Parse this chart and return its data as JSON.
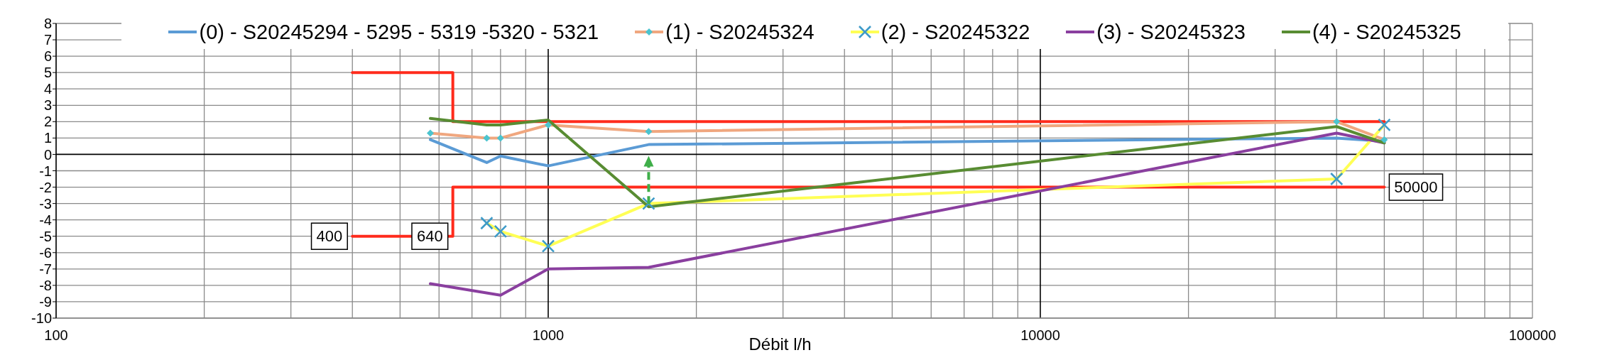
{
  "chart_data": {
    "type": "line",
    "xlabel": "Débit l/h",
    "log": "x",
    "x": [
      576,
      750,
      800,
      1000,
      1600,
      40000,
      50000
    ],
    "xlim": [
      100,
      100000
    ],
    "xticks": [
      100,
      {
        "value": 200,
        "label": null
      },
      {
        "value": 300,
        "label": null
      },
      {
        "value": 400,
        "label": null
      },
      {
        "value": 500,
        "label": null
      },
      {
        "value": 600,
        "label": null
      },
      {
        "value": 700,
        "label": null
      },
      {
        "value": 800,
        "label": null
      },
      {
        "value": 900,
        "label": null
      },
      1000,
      {
        "value": 2000,
        "label": null
      },
      {
        "value": 3000,
        "label": null
      },
      {
        "value": 4000,
        "label": null
      },
      {
        "value": 5000,
        "label": null
      },
      {
        "value": 6000,
        "label": null
      },
      {
        "value": 7000,
        "label": null
      },
      {
        "value": 8000,
        "label": null
      },
      {
        "value": 9000,
        "label": null
      },
      10000,
      {
        "value": 20000,
        "label": null
      },
      {
        "value": 30000,
        "label": null
      },
      {
        "value": 40000,
        "label": null
      },
      {
        "value": 50000,
        "label": null
      },
      {
        "value": 60000,
        "label": null
      },
      {
        "value": 70000,
        "label": null
      },
      {
        "value": 80000,
        "label": null
      },
      {
        "value": 90000,
        "label": null
      },
      100000
    ],
    "ylim": [
      -10,
      8
    ],
    "yticks": [
      -10,
      -9,
      -8,
      -7,
      -6,
      -5,
      -4,
      -3,
      -2,
      -1,
      0,
      1,
      2,
      3,
      4,
      5,
      6,
      7,
      8
    ],
    "grid": true,
    "legend": "top",
    "marker": "none",
    "line_style": "solid",
    "series": [
      {
        "color": "#ff2b1c",
        "x": [
          400,
          640,
          640,
          50000
        ],
        "values": [
          5,
          5,
          2,
          2
        ]
      },
      {
        "color": "#ff2b1c",
        "x": [
          400,
          640,
          640,
          50000
        ],
        "values": [
          -5,
          -5,
          -2,
          -2
        ]
      },
      {
        "name": "(0) - S20245294 - 5295 - 5319 -5320 - 5321",
        "color": "#5b9bd5",
        "values": [
          0.9,
          -0.5,
          -0.1,
          -0.7,
          0.6,
          1.0,
          0.8
        ]
      },
      {
        "name": "(1) - S20245324",
        "color": "#f0a77f",
        "marker": "diamond",
        "colors": [
          "#4bc4cf",
          "#4bc4cf",
          "#4bc4cf",
          "#4bc4cf",
          "#4bc4cf",
          "#4bc4cf",
          "#4bc4cf"
        ],
        "values": [
          1.3,
          1.0,
          1.0,
          1.8,
          1.4,
          2.0,
          0.9
        ]
      },
      {
        "name": "(2) - S20245322",
        "color": "#ffff55",
        "marker": "cross",
        "x": [
          750,
          800,
          1000,
          1600,
          40000,
          50000
        ],
        "colors": [
          "#3e9bc8",
          "#3e9bc8",
          "#3e9bc8",
          "#3e9bc8",
          "#3e9bc8",
          "#3e9bc8"
        ],
        "values": [
          -4.2,
          -4.7,
          -5.6,
          -3.0,
          -1.5,
          1.8
        ]
      },
      {
        "name": "(3) - S20245323",
        "color": "#8a3f9f",
        "x": [
          576,
          800,
          1000,
          1600,
          40000,
          50000
        ],
        "values": [
          -7.9,
          -8.6,
          -7.0,
          -6.9,
          1.3,
          0.7
        ]
      },
      {
        "name": "(4) - S20245325",
        "color": "#588c32",
        "values": [
          2.2,
          1.8,
          1.8,
          2.1,
          -3.2,
          1.7,
          0.7
        ]
      }
    ],
    "ref_lines": [
      {
        "axis": "y",
        "value": 0,
        "color": "#000000"
      }
    ],
    "annotations": [
      {
        "text": "400",
        "x": 400,
        "y": -5
      },
      {
        "text": "640",
        "x": 640,
        "y": -5
      },
      {
        "text": "50000",
        "x": 50000,
        "y": -2
      }
    ]
  }
}
